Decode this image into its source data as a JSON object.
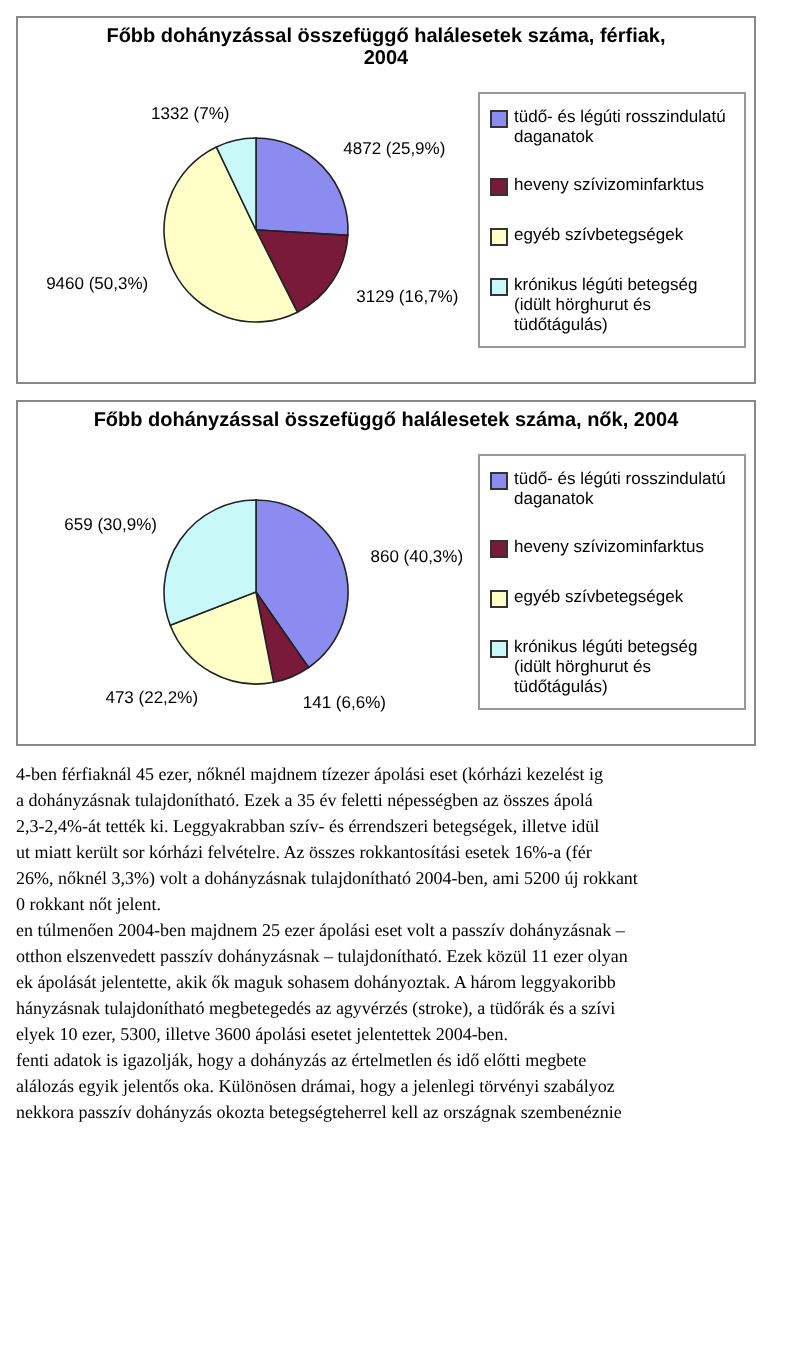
{
  "chart_data": [
    {
      "type": "pie",
      "title": "Főbb dohányzással összefüggő halálesetek száma, férfiak, 2004",
      "categories": [
        "tüdő- és légúti rosszindulatú daganatok",
        "heveny szívizominfarktus",
        "egyéb szívbetegségek",
        "krónikus légúti betegség (idült hörghurut és tüdőtágulás)"
      ],
      "values": [
        4872,
        3129,
        9460,
        1332
      ],
      "value_labels": [
        "4872 (25,9%)",
        "3129 (16,7%)",
        "9460 (50,3%)",
        "1332 (7%)"
      ],
      "colors": [
        "#8c8cf0",
        "#7a1a3a",
        "#ffffc8",
        "#c8f8f8"
      ],
      "legend": "right"
    },
    {
      "type": "pie",
      "title": "Főbb dohányzással összefüggő halálesetek száma, nők, 2004",
      "categories": [
        "tüdő- és légúti rosszindulatú daganatok",
        "heveny szívizominfarktus",
        "egyéb szívbetegségek",
        "krónikus légúti betegség (idült hörghurut és tüdőtágulás)"
      ],
      "values": [
        860,
        141,
        473,
        659
      ],
      "value_labels": [
        "860 (40,3%)",
        "141 (6,6%)",
        "473 (22,2%)",
        "659 (30,9%)"
      ],
      "colors": [
        "#8c8cf0",
        "#7a1a3a",
        "#ffffc8",
        "#c8f8f8"
      ],
      "legend": "right",
      "annotations": [
        "4-ben férfiaknál 45 ezer, nőknél majdnem tízezer ápolási eset (kórházi kezelést ig",
        "a dohányzásnak tulajdonítható. Ezek a 35 év feletti népességben az összes ápolá",
        "2,3-2,4%-át tették ki. Leggyakrabban szív- és érrendszeri betegségek, illetve idül",
        "ut miatt került sor kórházi felvételre. Az összes rokkantosítási esetek 16%-a (fér",
        "26%, nőknél 3,3%) volt a dohányzásnak tulajdonítható 2004-ben, ami 5200 új rokkant",
        "0 rokkant nőt jelent.",
        "en túlmenően 2004-ben majdnem 25 ezer ápolási eset volt a passzív dohányzásnak –",
        "otthon elszenvedett passzív dohányzásnak – tulajdonítható. Ezek közül 11 ezer olyan",
        "ek ápolását jelentette, akik ők maguk sohasem dohányoztak. A három leggyakoribb",
        "hányzásnak tulajdonítható megbetegedés az agyvérzés (stroke), a tüdőrák és a szívi",
        "elyek 10 ezer, 5300, illetve 3600 ápolási esetet jelentettek 2004-ben.",
        "fenti adatok is igazolják, hogy a dohányzás az értelmetlen és idő előtti megbete",
        "alálozás egyik jelentős oka. Különösen drámai, hogy a jelenlegi törvényi szabályoz",
        "nekkora passzív dohányzás okozta betegségteherrel kell az országnak szembenéznie"
      ]
    }
  ]
}
